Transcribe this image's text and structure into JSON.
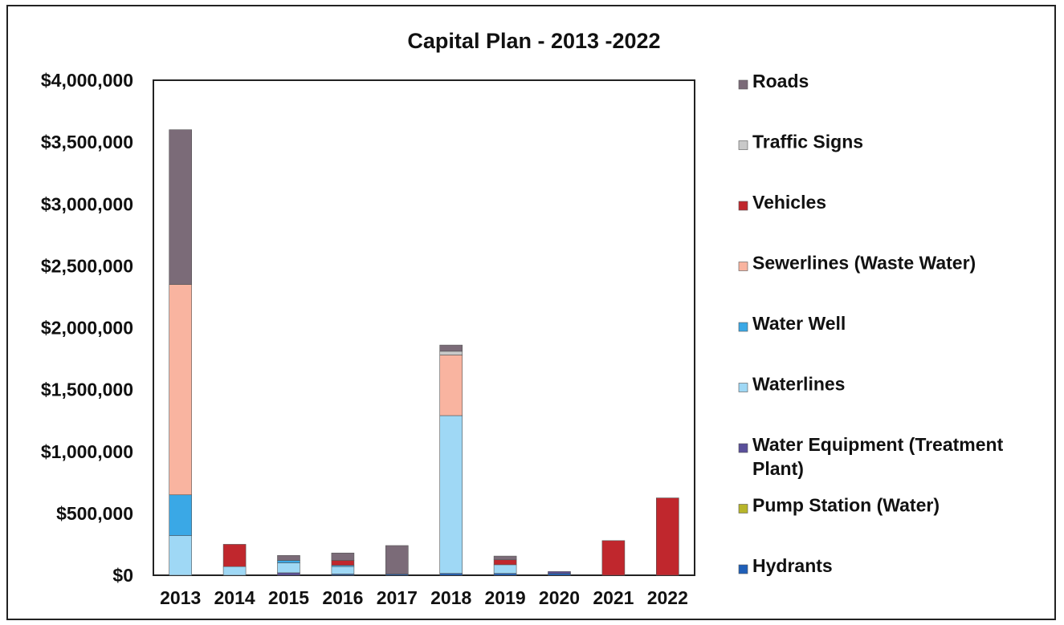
{
  "chart_data": {
    "type": "bar",
    "stacked": true,
    "title": "Capital Plan - 2013 -2022",
    "xlabel": "",
    "ylabel": "",
    "ylim": [
      0,
      4000000
    ],
    "y_ticks": [
      "$0",
      "$500,000",
      "$1,000,000",
      "$1,500,000",
      "$2,000,000",
      "$2,500,000",
      "$3,000,000",
      "$3,500,000",
      "$4,000,000"
    ],
    "y_tick_values": [
      0,
      500000,
      1000000,
      1500000,
      2000000,
      2500000,
      3000000,
      3500000,
      4000000
    ],
    "categories": [
      "2013",
      "2014",
      "2015",
      "2016",
      "2017",
      "2018",
      "2019",
      "2020",
      "2021",
      "2022"
    ],
    "grid": false,
    "legend_position": "right",
    "series": [
      {
        "name": "Hydrants",
        "color": "#1f5fb8",
        "values": [
          0,
          0,
          0,
          10000,
          10000,
          15000,
          15000,
          15000,
          0,
          0
        ]
      },
      {
        "name": "Pump Station (Water)",
        "color": "#b7b52a",
        "values": [
          0,
          0,
          0,
          0,
          0,
          0,
          0,
          0,
          0,
          0
        ]
      },
      {
        "name": "Water Equipment (Treatment\nPlant)",
        "color": "#5a4f9a",
        "values": [
          0,
          0,
          20000,
          0,
          0,
          0,
          0,
          15000,
          0,
          0
        ]
      },
      {
        "name": "Waterlines",
        "color": "#9fd8f5",
        "values": [
          320000,
          70000,
          80000,
          60000,
          0,
          1275000,
          70000,
          0,
          0,
          0
        ]
      },
      {
        "name": "Water Well",
        "color": "#3aa8e6",
        "values": [
          330000,
          0,
          20000,
          10000,
          0,
          0,
          0,
          0,
          0,
          0
        ]
      },
      {
        "name": "Sewerlines (Waste Water)",
        "color": "#f9b4a0",
        "values": [
          1700000,
          0,
          0,
          0,
          0,
          490000,
          0,
          0,
          0,
          0
        ]
      },
      {
        "name": "Vehicles",
        "color": "#c0272d",
        "values": [
          0,
          180000,
          0,
          40000,
          0,
          0,
          40000,
          0,
          280000,
          625000
        ]
      },
      {
        "name": "Traffic Signs",
        "color": "#c9c9c9",
        "values": [
          0,
          0,
          0,
          0,
          0,
          30000,
          0,
          0,
          0,
          0
        ]
      },
      {
        "name": "Roads",
        "color": "#7b6b78",
        "values": [
          1250000,
          0,
          40000,
          60000,
          230000,
          50000,
          30000,
          0,
          0,
          0
        ]
      }
    ]
  }
}
